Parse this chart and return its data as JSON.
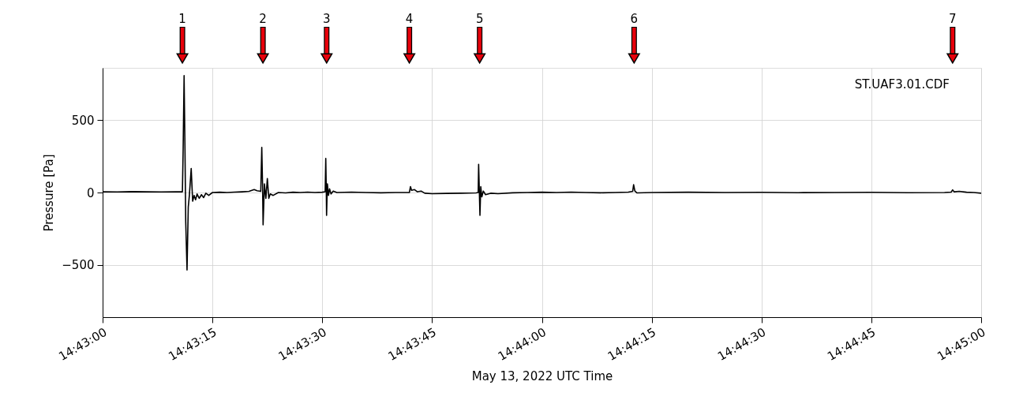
{
  "chart_data": {
    "type": "line",
    "xlabel": "May 13, 2022 UTC Time",
    "ylabel": "Pressure [Pa]",
    "xlim": [
      "2022-05-13T14:43:00",
      "2022-05-13T14:45:00"
    ],
    "xticks": [
      {
        "value": "2022-05-13T14:43:00",
        "label": "14:43:00"
      },
      {
        "value": "2022-05-13T14:43:15",
        "label": "14:43:15"
      },
      {
        "value": "2022-05-13T14:43:30",
        "label": "14:43:30"
      },
      {
        "value": "2022-05-13T14:43:45",
        "label": "14:43:45"
      },
      {
        "value": "2022-05-13T14:44:00",
        "label": "14:44:00"
      },
      {
        "value": "2022-05-13T14:44:15",
        "label": "14:44:15"
      },
      {
        "value": "2022-05-13T14:44:30",
        "label": "14:44:30"
      },
      {
        "value": "2022-05-13T14:44:45",
        "label": "14:44:45"
      },
      {
        "value": "2022-05-13T14:45:00",
        "label": "14:45:00"
      }
    ],
    "ylim": [
      -860,
      860
    ],
    "yticks": [
      -500,
      0,
      500
    ],
    "grid": true,
    "legend": false,
    "line_style": "solid",
    "marker": "none",
    "annotations": [
      {
        "text": "1",
        "x": "2022-05-13T14:43:10.9"
      },
      {
        "text": "2",
        "x": "2022-05-13T14:43:21.9"
      },
      {
        "text": "3",
        "x": "2022-05-13T14:43:30.6"
      },
      {
        "text": "4",
        "x": "2022-05-13T14:43:41.9"
      },
      {
        "text": "5",
        "x": "2022-05-13T14:43:51.5"
      },
      {
        "text": "6",
        "x": "2022-05-13T14:44:12.6"
      },
      {
        "text": "7",
        "x": "2022-05-13T14:44:56.1"
      },
      "ST.UAF3.01.CDF"
    ],
    "series": [
      {
        "color": "#000000",
        "x": [
          "2022-05-13T14:43:00",
          "2022-05-13T14:43:02",
          "2022-05-13T14:43:04",
          "2022-05-13T14:43:06",
          "2022-05-13T14:43:08",
          "2022-05-13T14:43:10",
          "2022-05-13T14:43:10.9",
          "2022-05-13T14:43:11.0",
          "2022-05-13T14:43:11.13",
          "2022-05-13T14:43:11.25",
          "2022-05-13T14:43:11.35",
          "2022-05-13T14:43:11.53",
          "2022-05-13T14:43:11.7",
          "2022-05-13T14:43:11.85",
          "2022-05-13T14:43:12.1",
          "2022-05-13T14:43:12.3",
          "2022-05-13T14:43:12.5",
          "2022-05-13T14:43:12.7",
          "2022-05-13T14:43:12.9",
          "2022-05-13T14:43:13.2",
          "2022-05-13T14:43:13.5",
          "2022-05-13T14:43:13.8",
          "2022-05-13T14:43:14.1",
          "2022-05-13T14:43:14.5",
          "2022-05-13T14:43:15",
          "2022-05-13T14:43:16",
          "2022-05-13T14:43:17",
          "2022-05-13T14:43:18",
          "2022-05-13T14:43:19",
          "2022-05-13T14:43:20",
          "2022-05-13T14:43:20.7",
          "2022-05-13T14:43:21.1",
          "2022-05-13T14:43:21.6",
          "2022-05-13T14:43:21.74",
          "2022-05-13T14:43:21.85",
          "2022-05-13T14:43:21.92",
          "2022-05-13T14:43:22.1",
          "2022-05-13T14:43:22.3",
          "2022-05-13T14:43:22.5",
          "2022-05-13T14:43:22.7",
          "2022-05-13T14:43:22.9",
          "2022-05-13T14:43:23.3",
          "2022-05-13T14:43:24",
          "2022-05-13T14:43:25",
          "2022-05-13T14:43:26",
          "2022-05-13T14:43:27",
          "2022-05-13T14:43:28",
          "2022-05-13T14:43:29",
          "2022-05-13T14:43:30",
          "2022-05-13T14:43:30.4",
          "2022-05-13T14:43:30.48",
          "2022-05-13T14:43:30.55",
          "2022-05-13T14:43:30.59",
          "2022-05-13T14:43:30.7",
          "2022-05-13T14:43:30.85",
          "2022-05-13T14:43:31",
          "2022-05-13T14:43:31.2",
          "2022-05-13T14:43:31.5",
          "2022-05-13T14:43:32",
          "2022-05-13T14:43:34",
          "2022-05-13T14:43:36",
          "2022-05-13T14:43:38",
          "2022-05-13T14:43:40",
          "2022-05-13T14:43:41.9",
          "2022-05-13T14:43:42.05",
          "2022-05-13T14:43:42.2",
          "2022-05-13T14:43:42.6",
          "2022-05-13T14:43:43",
          "2022-05-13T14:43:43.5",
          "2022-05-13T14:43:44",
          "2022-05-13T14:43:45",
          "2022-05-13T14:43:47",
          "2022-05-13T14:43:49",
          "2022-05-13T14:43:51",
          "2022-05-13T14:43:51.3",
          "2022-05-13T14:43:51.36",
          "2022-05-13T14:43:51.45",
          "2022-05-13T14:43:51.54",
          "2022-05-13T14:43:51.65",
          "2022-05-13T14:43:51.8",
          "2022-05-13T14:43:52",
          "2022-05-13T14:43:52.3",
          "2022-05-13T14:43:53",
          "2022-05-13T14:43:54",
          "2022-05-13T14:43:56",
          "2022-05-13T14:43:58",
          "2022-05-13T14:44:00",
          "2022-05-13T14:44:02",
          "2022-05-13T14:44:04",
          "2022-05-13T14:44:06",
          "2022-05-13T14:44:08",
          "2022-05-13T14:44:10",
          "2022-05-13T14:44:11.8",
          "2022-05-13T14:44:12.4",
          "2022-05-13T14:44:12.53",
          "2022-05-13T14:44:12.7",
          "2022-05-13T14:44:13",
          "2022-05-13T14:44:15",
          "2022-05-13T14:44:20",
          "2022-05-13T14:44:25",
          "2022-05-13T14:44:30",
          "2022-05-13T14:44:35",
          "2022-05-13T14:44:40",
          "2022-05-13T14:44:45",
          "2022-05-13T14:44:50",
          "2022-05-13T14:44:55",
          "2022-05-13T14:44:55.9",
          "2022-05-13T14:44:56.1",
          "2022-05-13T14:44:56.3",
          "2022-05-13T14:44:57",
          "2022-05-13T14:44:58",
          "2022-05-13T14:44:59",
          "2022-05-13T14:45:00"
        ],
        "values": [
          5,
          4,
          6,
          5,
          4,
          5,
          5,
          300,
          806,
          300,
          -200,
          -535,
          -100,
          -20,
          166,
          -60,
          -20,
          -50,
          -10,
          -40,
          -15,
          -35,
          -5,
          -20,
          0,
          2,
          0,
          3,
          5,
          8,
          20,
          12,
          8,
          311,
          40,
          -223,
          60,
          -40,
          96,
          -40,
          -10,
          -20,
          0,
          -3,
          2,
          0,
          3,
          0,
          2,
          5,
          235,
          20,
          -158,
          60,
          -20,
          25,
          -10,
          10,
          0,
          3,
          0,
          -2,
          0,
          0,
          41,
          15,
          20,
          5,
          10,
          -5,
          -8,
          -6,
          -5,
          -3,
          0,
          194,
          20,
          -158,
          40,
          -30,
          10,
          -15,
          -5,
          -8,
          -2,
          0,
          2,
          0,
          3,
          0,
          -2,
          0,
          3,
          8,
          54,
          10,
          -3,
          0,
          2,
          0,
          1,
          -1,
          0,
          1,
          -1,
          0,
          3,
          18,
          5,
          8,
          2,
          0,
          -5
        ]
      }
    ]
  }
}
